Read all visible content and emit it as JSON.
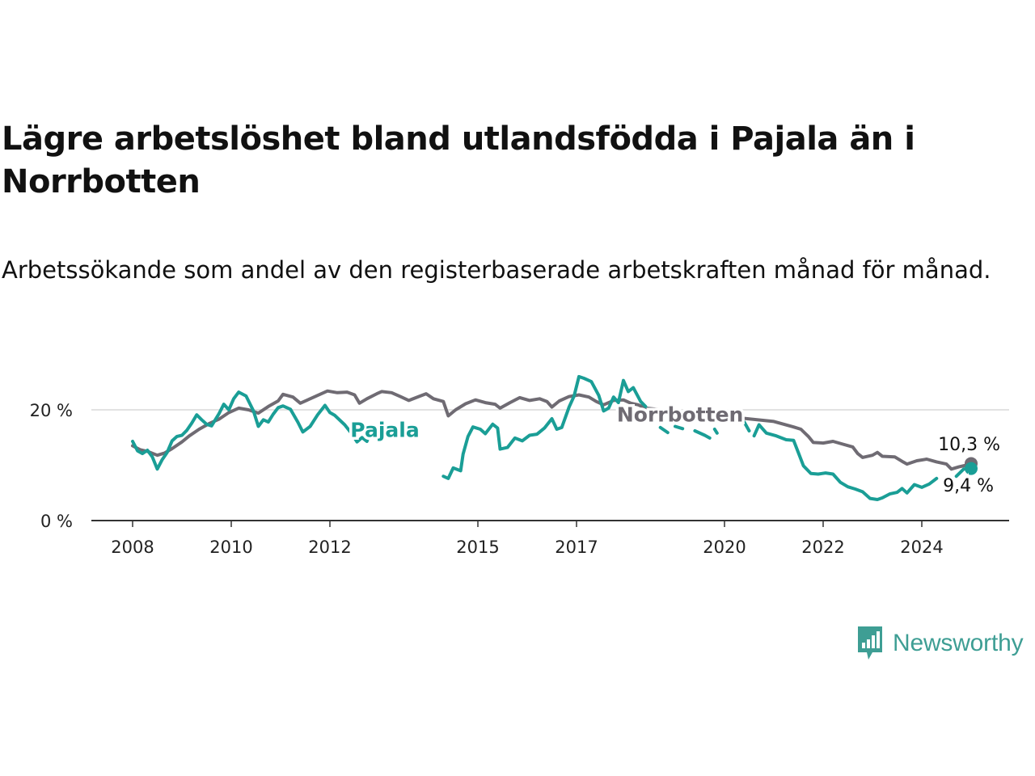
{
  "header": {
    "title": "Lägre arbetslöshet bland utlandsfödda i Pajala än i Norrbotten",
    "subtitle": "Arbetssökande som andel av den registerbaserade arbetskraften månad för månad."
  },
  "brand": {
    "name": "Newsworthy",
    "icon": "newsworthy-logo-icon",
    "color": "#3e9e94"
  },
  "chart_data": {
    "type": "line",
    "title": "Lägre arbetslöshet bland utlandsfödda i Pajala än i Norrbotten",
    "subtitle": "Arbetssökande som andel av den registerbaserade arbetskraften månad för månad.",
    "xlabel": "",
    "ylabel": "",
    "x_range": [
      2008.0,
      2025.2
    ],
    "ylim": [
      0,
      25
    ],
    "y_ticks": [
      {
        "value": 0,
        "label": "0 %"
      },
      {
        "value": 20,
        "label": "20 %"
      }
    ],
    "x_ticks": [
      {
        "value": 2008,
        "label": "2008"
      },
      {
        "value": 2010,
        "label": "2010"
      },
      {
        "value": 2012,
        "label": "2012"
      },
      {
        "value": 2015,
        "label": "2015"
      },
      {
        "value": 2017,
        "label": "2017"
      },
      {
        "value": 2020,
        "label": "2020"
      },
      {
        "value": 2022,
        "label": "2022"
      },
      {
        "value": 2024,
        "label": "2024"
      }
    ],
    "grid": "horizontal",
    "legend": "none (direct labels on lines)",
    "series": [
      {
        "name": "Norrbotten",
        "color": "#6f6b73",
        "end_label": "10,3 %",
        "points": [
          [
            2008.0,
            13.5
          ],
          [
            2008.15,
            12.8
          ],
          [
            2008.3,
            12.5
          ],
          [
            2008.5,
            11.8
          ],
          [
            2008.65,
            12.2
          ],
          [
            2008.8,
            13.0
          ],
          [
            2009.0,
            14.2
          ],
          [
            2009.15,
            15.3
          ],
          [
            2009.35,
            16.5
          ],
          [
            2009.55,
            17.5
          ],
          [
            2009.75,
            18.3
          ],
          [
            2009.95,
            19.5
          ],
          [
            2010.15,
            20.3
          ],
          [
            2010.35,
            20.0
          ],
          [
            2010.55,
            19.4
          ],
          [
            2010.75,
            20.6
          ],
          [
            2010.95,
            21.6
          ],
          [
            2011.05,
            22.8
          ],
          [
            2011.25,
            22.3
          ],
          [
            2011.4,
            21.2
          ],
          [
            2011.6,
            22.0
          ],
          [
            2011.8,
            22.8
          ],
          [
            2011.95,
            23.4
          ],
          [
            2012.15,
            23.1
          ],
          [
            2012.35,
            23.2
          ],
          [
            2012.5,
            22.7
          ],
          [
            2012.6,
            21.2
          ],
          [
            2012.75,
            22.0
          ],
          [
            2012.95,
            22.9
          ],
          [
            2013.05,
            23.3
          ],
          [
            2013.25,
            23.1
          ],
          [
            2013.45,
            22.3
          ],
          [
            2013.6,
            21.7
          ],
          [
            2013.8,
            22.4
          ],
          [
            2013.95,
            22.9
          ],
          [
            2014.1,
            22.0
          ],
          [
            2014.3,
            21.5
          ],
          [
            2014.4,
            18.9
          ],
          [
            2014.55,
            20.0
          ],
          [
            2014.75,
            21.1
          ],
          [
            2014.95,
            21.8
          ],
          [
            2015.15,
            21.3
          ],
          [
            2015.35,
            21.0
          ],
          [
            2015.45,
            20.3
          ],
          [
            2015.65,
            21.3
          ],
          [
            2015.85,
            22.2
          ],
          [
            2016.05,
            21.7
          ],
          [
            2016.25,
            22.0
          ],
          [
            2016.4,
            21.5
          ],
          [
            2016.5,
            20.5
          ],
          [
            2016.65,
            21.6
          ],
          [
            2016.85,
            22.4
          ],
          [
            2017.05,
            22.7
          ],
          [
            2017.25,
            22.3
          ],
          [
            2017.4,
            21.5
          ],
          [
            2017.55,
            20.9
          ],
          [
            2017.75,
            21.7
          ],
          [
            2017.95,
            21.8
          ],
          [
            2018.1,
            21.2
          ],
          [
            2018.25,
            20.9
          ],
          [
            2018.4,
            20.3
          ],
          [
            2021.0,
            17.9
          ],
          [
            2021.2,
            17.4
          ],
          [
            2021.4,
            16.9
          ],
          [
            2021.55,
            16.5
          ],
          [
            2021.7,
            15.2
          ],
          [
            2021.8,
            14.1
          ],
          [
            2022.0,
            14.0
          ],
          [
            2022.2,
            14.3
          ],
          [
            2022.4,
            13.8
          ],
          [
            2022.6,
            13.3
          ],
          [
            2022.7,
            12.1
          ],
          [
            2022.8,
            11.4
          ],
          [
            2023.0,
            11.8
          ],
          [
            2023.1,
            12.3
          ],
          [
            2023.2,
            11.6
          ],
          [
            2023.45,
            11.5
          ],
          [
            2023.6,
            10.7
          ],
          [
            2023.7,
            10.2
          ],
          [
            2023.9,
            10.8
          ],
          [
            2024.1,
            11.1
          ],
          [
            2024.3,
            10.6
          ],
          [
            2024.5,
            10.2
          ],
          [
            2024.6,
            9.3
          ],
          [
            2024.75,
            9.7
          ],
          [
            2024.9,
            10.0
          ],
          [
            2025.0,
            10.3
          ]
        ]
      },
      {
        "name": "Pajala",
        "color": "#1a9e96",
        "end_label": "9,4 %",
        "segments": [
          [
            [
              2008.0,
              14.3
            ],
            [
              2008.1,
              12.6
            ],
            [
              2008.2,
              12.1
            ],
            [
              2008.3,
              12.7
            ],
            [
              2008.4,
              11.5
            ],
            [
              2008.5,
              9.3
            ],
            [
              2008.6,
              11.0
            ],
            [
              2008.7,
              12.3
            ],
            [
              2008.8,
              14.4
            ],
            [
              2008.9,
              15.2
            ],
            [
              2009.0,
              15.4
            ],
            [
              2009.1,
              16.3
            ],
            [
              2009.2,
              17.6
            ],
            [
              2009.3,
              19.1
            ],
            [
              2009.4,
              18.2
            ],
            [
              2009.5,
              17.4
            ],
            [
              2009.6,
              17.1
            ],
            [
              2009.75,
              19.3
            ],
            [
              2009.85,
              21.0
            ],
            [
              2009.95,
              20.0
            ],
            [
              2010.05,
              22.0
            ],
            [
              2010.15,
              23.2
            ],
            [
              2010.3,
              22.5
            ],
            [
              2010.45,
              19.8
            ],
            [
              2010.55,
              17.0
            ],
            [
              2010.65,
              18.2
            ],
            [
              2010.75,
              17.8
            ],
            [
              2010.85,
              19.2
            ],
            [
              2010.95,
              20.4
            ],
            [
              2011.05,
              20.7
            ],
            [
              2011.2,
              20.1
            ],
            [
              2011.35,
              17.8
            ],
            [
              2011.45,
              16.0
            ],
            [
              2011.6,
              17.0
            ],
            [
              2011.75,
              19.1
            ],
            [
              2011.9,
              20.8
            ],
            [
              2012.0,
              19.5
            ],
            [
              2012.1,
              19.0
            ],
            [
              2012.3,
              17.3
            ],
            [
              2012.45,
              15.6
            ],
            [
              2012.55,
              14.2
            ],
            [
              2012.65,
              15.0
            ],
            [
              2012.75,
              14.3
            ],
            [
              2012.85,
              16.8
            ],
            [
              2012.95,
              15.9
            ],
            [
              2013.05,
              16.5
            ],
            [
              2013.15,
              15.2
            ],
            [
              2013.25,
              16.5
            ],
            [
              2013.4,
              15.0
            ]
          ],
          [
            [
              2014.3,
              8.0
            ],
            [
              2014.4,
              7.6
            ],
            [
              2014.5,
              9.5
            ],
            [
              2014.65,
              9.0
            ],
            [
              2014.7,
              12.0
            ],
            [
              2014.8,
              15.2
            ],
            [
              2014.9,
              16.9
            ],
            [
              2015.05,
              16.5
            ],
            [
              2015.15,
              15.7
            ],
            [
              2015.3,
              17.4
            ],
            [
              2015.4,
              16.7
            ],
            [
              2015.45,
              12.9
            ],
            [
              2015.6,
              13.2
            ],
            [
              2015.75,
              14.9
            ],
            [
              2015.9,
              14.4
            ],
            [
              2016.05,
              15.4
            ],
            [
              2016.2,
              15.6
            ],
            [
              2016.35,
              16.7
            ],
            [
              2016.5,
              18.4
            ],
            [
              2016.6,
              16.5
            ],
            [
              2016.7,
              16.8
            ],
            [
              2016.85,
              20.5
            ],
            [
              2016.95,
              22.5
            ],
            [
              2017.05,
              26.0
            ],
            [
              2017.15,
              25.7
            ],
            [
              2017.3,
              25.1
            ],
            [
              2017.45,
              22.6
            ],
            [
              2017.55,
              19.8
            ],
            [
              2017.65,
              20.3
            ],
            [
              2017.75,
              22.3
            ],
            [
              2017.85,
              21.3
            ],
            [
              2017.95,
              25.3
            ],
            [
              2018.05,
              23.3
            ],
            [
              2018.15,
              24.0
            ],
            [
              2018.3,
              21.5
            ],
            [
              2018.4,
              20.6
            ]
          ],
          [
            [
              2018.7,
              16.8
            ],
            [
              2018.85,
              15.9
            ]
          ],
          [
            [
              2019.0,
              17.0
            ],
            [
              2019.15,
              16.6
            ]
          ],
          [
            [
              2019.4,
              16.2
            ],
            [
              2019.6,
              15.4
            ],
            [
              2019.7,
              14.9
            ]
          ],
          [
            [
              2019.8,
              16.5
            ],
            [
              2019.85,
              15.8
            ]
          ],
          [
            [
              2020.4,
              17.8
            ],
            [
              2020.5,
              16.2
            ]
          ],
          [
            [
              2020.6,
              15.3
            ],
            [
              2020.7,
              17.3
            ],
            [
              2020.85,
              15.8
            ],
            [
              2021.05,
              15.3
            ],
            [
              2021.25,
              14.6
            ],
            [
              2021.4,
              14.5
            ],
            [
              2021.5,
              12.2
            ],
            [
              2021.6,
              9.9
            ],
            [
              2021.75,
              8.5
            ],
            [
              2021.9,
              8.4
            ],
            [
              2022.05,
              8.6
            ],
            [
              2022.2,
              8.4
            ],
            [
              2022.35,
              6.9
            ],
            [
              2022.5,
              6.1
            ],
            [
              2022.65,
              5.7
            ],
            [
              2022.8,
              5.2
            ],
            [
              2022.95,
              4.0
            ],
            [
              2023.1,
              3.8
            ],
            [
              2023.2,
              4.1
            ],
            [
              2023.35,
              4.8
            ],
            [
              2023.5,
              5.1
            ],
            [
              2023.6,
              5.8
            ],
            [
              2023.7,
              5.0
            ],
            [
              2023.85,
              6.5
            ],
            [
              2024.0,
              6.0
            ],
            [
              2024.15,
              6.6
            ],
            [
              2024.3,
              7.6
            ]
          ],
          [
            [
              2024.7,
              8.0
            ],
            [
              2024.85,
              9.3
            ],
            [
              2025.0,
              9.4
            ]
          ]
        ]
      }
    ],
    "series_label_positions": {
      "Norrbotten": [
        2019.1,
        17.9
      ],
      "Pajala": [
        2013.0,
        15.0
      ]
    }
  }
}
